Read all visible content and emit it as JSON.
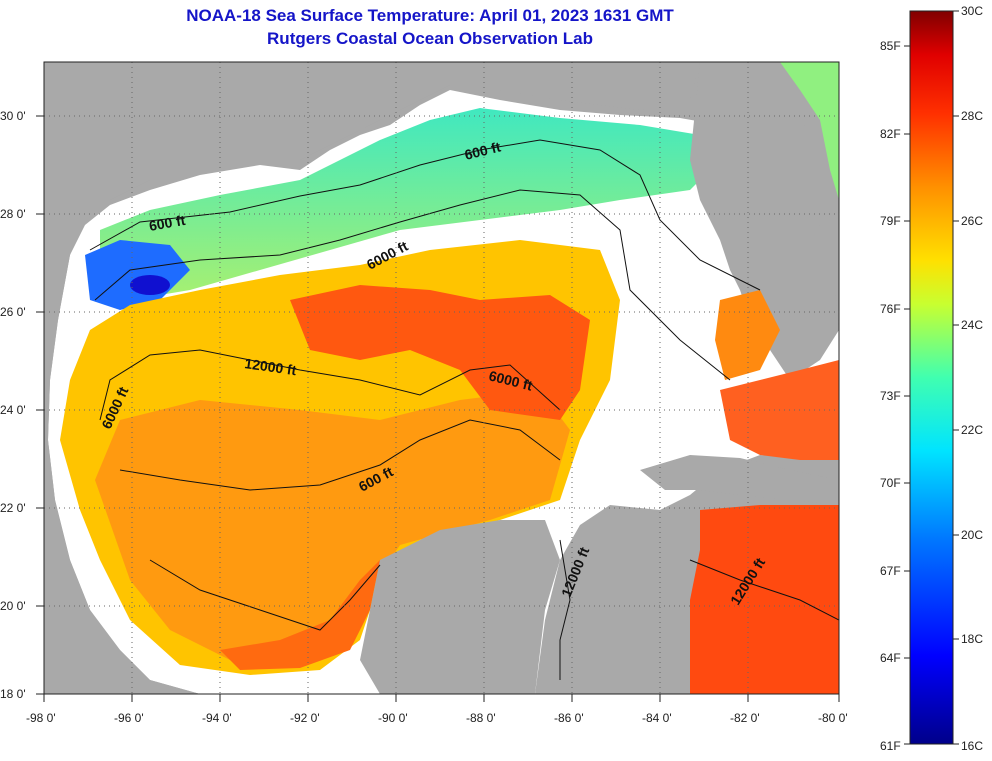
{
  "title": {
    "line1": "NOAA-18 Sea Surface Temperature:  April 01, 2023 1631 GMT",
    "line2": "Rutgers Coastal Ocean Observation Lab"
  },
  "axes": {
    "longitude_ticks": [
      "-98 0'",
      "-96 0'",
      "-94 0'",
      "-92 0'",
      "-90 0'",
      "-88 0'",
      "-86 0'",
      "-84 0'",
      "-82 0'",
      "-80 0'"
    ],
    "latitude_ticks": [
      "30 0'",
      "28 0'",
      "26 0'",
      "24 0'",
      "22 0'",
      "20 0'",
      "18 0'"
    ],
    "lon_range": [
      -98,
      -80
    ],
    "lat_range": [
      18,
      31
    ]
  },
  "contour_labels": [
    "600 ft",
    "600 ft",
    "6000 ft",
    "12000 ft",
    "6000 ft",
    "6000 ft",
    "600 ft",
    "12000 ft",
    "12000 ft"
  ],
  "colorbar": {
    "fahrenheit": [
      "85F",
      "82F",
      "79F",
      "76F",
      "73F",
      "70F",
      "67F",
      "64F",
      "61F"
    ],
    "celsius": [
      "30C",
      "28C",
      "26C",
      "24C",
      "22C",
      "20C",
      "18C",
      "16C"
    ]
  },
  "colors": {
    "land": "#a9a9a9",
    "no_data": "#ffffff",
    "title": "#1515c8"
  }
}
